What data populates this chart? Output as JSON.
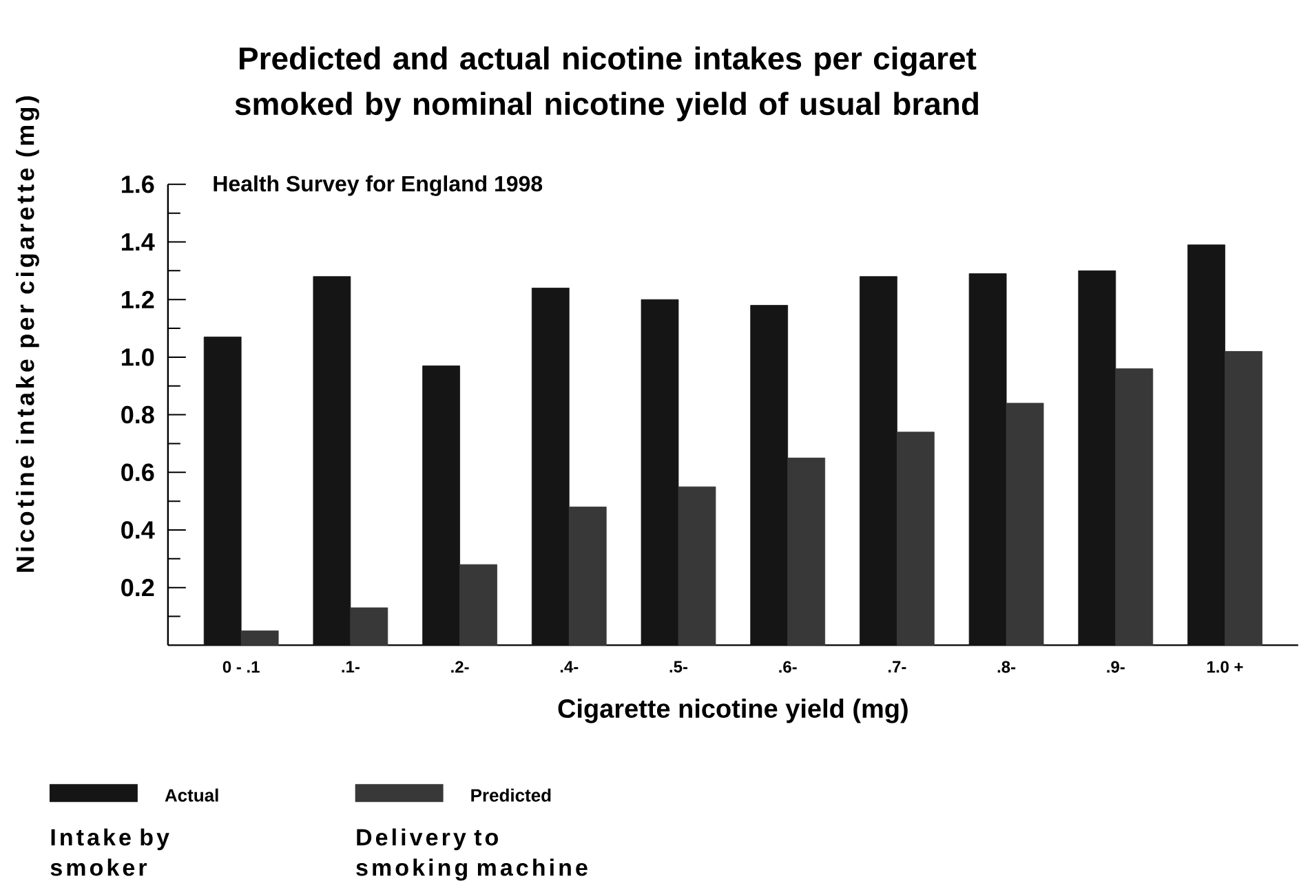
{
  "chart_data": {
    "type": "bar",
    "title": "Predicted and actual  nicotine intakes per cigaret smoked by nominal nicotine yield of usual brand",
    "subtitle": "Health Survey for England 1998",
    "xlabel": "Cigarette nicotine yield (mg)",
    "ylabel": "Nicotine intake per cigarette (mg)",
    "categories": [
      "0 - .1",
      ".1-",
      ".2-",
      ".4-",
      ".5-",
      ".6-",
      ".7-",
      ".8-",
      ".9-",
      "1.0 +"
    ],
    "series": [
      {
        "name": "Actual",
        "color": "#151515",
        "values": [
          1.07,
          1.28,
          0.97,
          1.24,
          1.2,
          1.18,
          1.28,
          1.29,
          1.3,
          1.39
        ]
      },
      {
        "name": "Predicted",
        "color": "#383838",
        "values": [
          0.05,
          0.13,
          0.28,
          0.48,
          0.55,
          0.65,
          0.74,
          0.84,
          0.96,
          1.02
        ]
      }
    ],
    "annotations": [
      "Intake by smoker",
      "Delivery to smoking machine"
    ],
    "ylim": [
      0,
      1.6
    ],
    "yticks": [
      {
        "value": 0.1,
        "label": null
      },
      0.2,
      {
        "value": 0.3,
        "label": null
      },
      0.4,
      {
        "value": 0.5,
        "label": null
      },
      0.6,
      {
        "value": 0.7,
        "label": null
      },
      0.8,
      {
        "value": 0.9,
        "label": null
      },
      {
        "value": 1,
        "label": "1.0"
      },
      {
        "value": 1.1,
        "label": null
      },
      1.2,
      {
        "value": 1.3,
        "label": null
      },
      1.4,
      {
        "value": 1.5,
        "label": null
      },
      1.6
    ],
    "legend": "bottom",
    "grid": false
  }
}
